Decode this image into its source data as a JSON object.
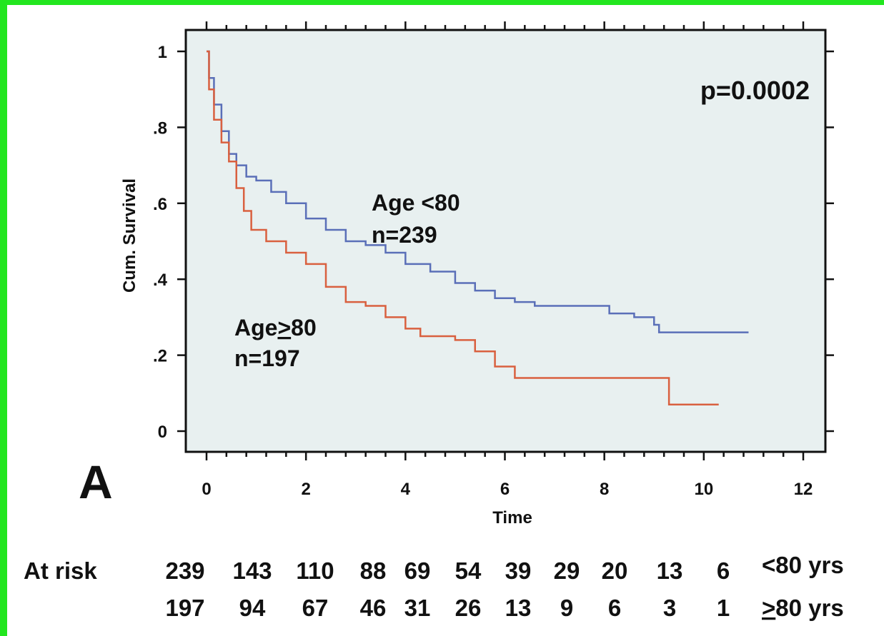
{
  "colors": {
    "border": "#22e61f",
    "plot_bg": "#e8f0f0",
    "page_bg": "#ffffff",
    "axis": "#111111",
    "series_under80": "#5a6fb8",
    "series_over80": "#d9603f"
  },
  "chart_data": {
    "type": "line",
    "subtype": "kaplan-meier step",
    "panel_label": "A",
    "xlabel": "Time",
    "ylabel": "Cum. Survival",
    "xlim": [
      0,
      12
    ],
    "ylim": [
      0,
      1
    ],
    "x_ticks": [
      "0",
      "2",
      "4",
      "6",
      "8",
      "10",
      "12"
    ],
    "y_ticks": [
      "0",
      ".2",
      ".4",
      ".6",
      ".8",
      "1"
    ],
    "x_tick_values": [
      0,
      2,
      4,
      6,
      8,
      10,
      12
    ],
    "y_tick_values": [
      0,
      0.2,
      0.4,
      0.6,
      0.8,
      1.0
    ],
    "grid": false,
    "p_value": "p=0.0002",
    "series": [
      {
        "name": "Age <80",
        "n_label": "n=239",
        "color": "#5a6fb8",
        "points": [
          [
            0,
            1.0
          ],
          [
            0.05,
            0.93
          ],
          [
            0.15,
            0.86
          ],
          [
            0.3,
            0.79
          ],
          [
            0.45,
            0.73
          ],
          [
            0.6,
            0.7
          ],
          [
            0.8,
            0.67
          ],
          [
            1.0,
            0.66
          ],
          [
            1.3,
            0.63
          ],
          [
            1.6,
            0.6
          ],
          [
            2.0,
            0.56
          ],
          [
            2.4,
            0.53
          ],
          [
            2.8,
            0.5
          ],
          [
            3.2,
            0.49
          ],
          [
            3.6,
            0.47
          ],
          [
            4.0,
            0.44
          ],
          [
            4.5,
            0.42
          ],
          [
            5.0,
            0.39
          ],
          [
            5.4,
            0.37
          ],
          [
            5.8,
            0.35
          ],
          [
            6.2,
            0.34
          ],
          [
            6.6,
            0.33
          ],
          [
            7.5,
            0.33
          ],
          [
            8.1,
            0.31
          ],
          [
            8.6,
            0.3
          ],
          [
            9.0,
            0.28
          ],
          [
            9.1,
            0.26
          ],
          [
            10.9,
            0.26
          ]
        ]
      },
      {
        "name": "Age≥80",
        "n_label": "n=197",
        "color": "#d9603f",
        "points": [
          [
            0,
            1.0
          ],
          [
            0.05,
            0.9
          ],
          [
            0.15,
            0.82
          ],
          [
            0.3,
            0.76
          ],
          [
            0.45,
            0.71
          ],
          [
            0.6,
            0.64
          ],
          [
            0.75,
            0.58
          ],
          [
            0.9,
            0.53
          ],
          [
            1.2,
            0.5
          ],
          [
            1.6,
            0.47
          ],
          [
            2.0,
            0.44
          ],
          [
            2.4,
            0.38
          ],
          [
            2.8,
            0.34
          ],
          [
            3.2,
            0.33
          ],
          [
            3.6,
            0.3
          ],
          [
            4.0,
            0.27
          ],
          [
            4.3,
            0.25
          ],
          [
            5.0,
            0.24
          ],
          [
            5.4,
            0.21
          ],
          [
            5.8,
            0.17
          ],
          [
            6.2,
            0.14
          ],
          [
            7.0,
            0.14
          ],
          [
            9.3,
            0.14
          ],
          [
            9.3,
            0.07
          ],
          [
            10.3,
            0.07
          ]
        ]
      }
    ],
    "annotations": {
      "under80_title": "Age <80",
      "under80_n": "n=239",
      "over80_title_prefix": "Age",
      "over80_title_symbol": ">",
      "over80_title_suffix": "80",
      "over80_n": "n=197"
    }
  },
  "at_risk": {
    "label": "At risk",
    "rows": [
      {
        "group_label_symbol": "<",
        "group_label_rest": "80 yrs",
        "values": [
          "239",
          "143",
          "110",
          "88",
          "69",
          "54",
          "39",
          "29",
          "20",
          "13",
          "6"
        ]
      },
      {
        "group_label_symbol": ">",
        "group_label_rest": "80 yrs",
        "values": [
          "197",
          "94",
          "67",
          "46",
          "31",
          "26",
          "13",
          "9",
          "6",
          "3",
          "1"
        ]
      }
    ]
  }
}
